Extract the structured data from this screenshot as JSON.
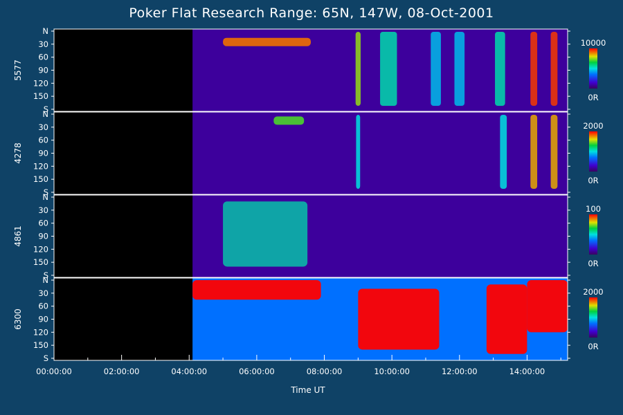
{
  "chart_data": {
    "type": "heatmap",
    "title": "Poker Flat Research Range: 65N, 147W, 08-Oct-2001",
    "xlabel": "Time UT",
    "x_ticks": [
      "00:00:00",
      "02:00:00",
      "04:00:00",
      "06:00:00",
      "08:00:00",
      "10:00:00",
      "12:00:00",
      "14:00:00"
    ],
    "xlim_hours": [
      0,
      15.2
    ],
    "y_ticks": [
      "N",
      "30",
      "60",
      "90",
      "120",
      "150",
      "S"
    ],
    "ylim": [
      0,
      180
    ],
    "panels": [
      {
        "wavelength": "5577",
        "colorbar_max": "10000",
        "colorbar_min": "0R",
        "data_start_hours": 4.1,
        "features": [
          {
            "kind": "arc",
            "t_start": 5.0,
            "t_end": 7.6,
            "lat_center": 25,
            "level": 0.9
          },
          {
            "kind": "band",
            "t_center": 9.0,
            "width": 0.15,
            "level": 0.75
          },
          {
            "kind": "band",
            "t_center": 9.9,
            "width": 0.5,
            "level": 0.55
          },
          {
            "kind": "band",
            "t_center": 11.3,
            "width": 0.3,
            "level": 0.45
          },
          {
            "kind": "band",
            "t_center": 12.0,
            "width": 0.3,
            "level": 0.45
          },
          {
            "kind": "band",
            "t_center": 13.2,
            "width": 0.3,
            "level": 0.55
          },
          {
            "kind": "band",
            "t_center": 14.2,
            "width": 0.2,
            "level": 0.95
          },
          {
            "kind": "band",
            "t_center": 14.8,
            "width": 0.2,
            "level": 0.95
          }
        ]
      },
      {
        "wavelength": "4278",
        "colorbar_max": "2000",
        "colorbar_min": "0R",
        "data_start_hours": 4.1,
        "features": [
          {
            "kind": "arc",
            "t_start": 6.5,
            "t_end": 7.4,
            "lat_center": 15,
            "level": 0.7
          },
          {
            "kind": "band",
            "t_center": 9.0,
            "width": 0.12,
            "level": 0.5
          },
          {
            "kind": "band",
            "t_center": 13.3,
            "width": 0.2,
            "level": 0.5
          },
          {
            "kind": "band",
            "t_center": 14.2,
            "width": 0.2,
            "level": 0.85
          },
          {
            "kind": "band",
            "t_center": 14.8,
            "width": 0.2,
            "level": 0.85
          }
        ]
      },
      {
        "wavelength": "4861",
        "colorbar_max": "100",
        "colorbar_min": "0R",
        "data_start_hours": 4.1,
        "features": [
          {
            "kind": "patch",
            "t_start": 5.0,
            "t_end": 7.5,
            "lat_start": 10,
            "lat_end": 160,
            "level": 0.55
          }
        ]
      },
      {
        "wavelength": "6300",
        "colorbar_max": "2000",
        "colorbar_min": "0R",
        "data_start_hours": 4.1,
        "features": [
          {
            "kind": "saturated",
            "t_start": 4.1,
            "t_end": 7.9,
            "lat_start": 0,
            "lat_end": 45,
            "level": 1.0
          },
          {
            "kind": "saturated",
            "t_start": 9.0,
            "t_end": 11.4,
            "lat_start": 20,
            "lat_end": 160,
            "level": 1.0
          },
          {
            "kind": "saturated",
            "t_start": 12.8,
            "t_end": 14.0,
            "lat_start": 10,
            "lat_end": 170,
            "level": 1.0
          },
          {
            "kind": "saturated",
            "t_start": 14.0,
            "t_end": 15.2,
            "lat_start": 0,
            "lat_end": 120,
            "level": 1.0
          }
        ]
      }
    ]
  }
}
